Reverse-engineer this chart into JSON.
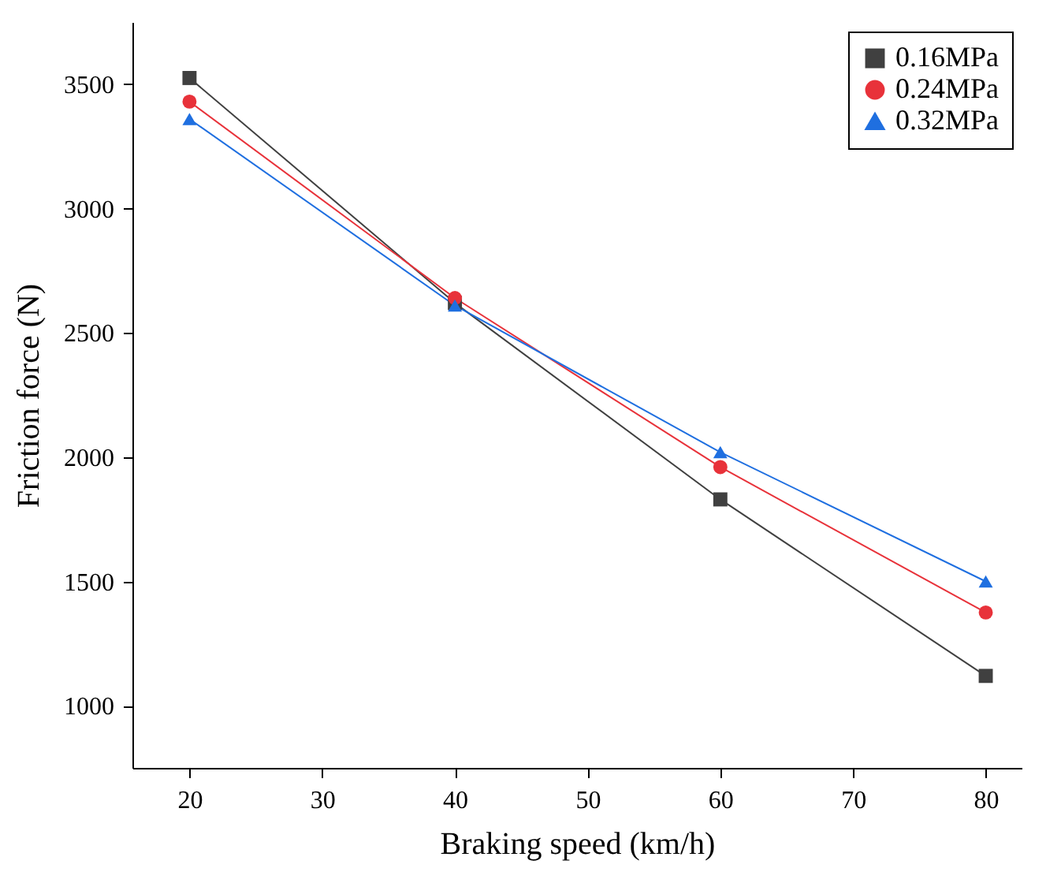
{
  "chart_data": {
    "type": "line",
    "xlabel": "Braking speed (km/h)",
    "ylabel": "Friction force (N)",
    "x": [
      20,
      40,
      60,
      80
    ],
    "series": [
      {
        "name": "0.16MPa",
        "color": "#404040",
        "marker": "square",
        "values": [
          3525,
          2620,
          1830,
          1120
        ]
      },
      {
        "name": "0.24MPa",
        "color": "#e8323a",
        "marker": "circle",
        "values": [
          3430,
          2640,
          1960,
          1375
        ]
      },
      {
        "name": "0.32MPa",
        "color": "#1f6fe0",
        "marker": "triangle",
        "values": [
          3360,
          2610,
          2020,
          1500
        ]
      }
    ],
    "xlim": [
      15.7,
      82.7
    ],
    "xticks": [
      20,
      30,
      40,
      50,
      60,
      70,
      80
    ],
    "ylim": [
      750,
      3750
    ],
    "yticks": [
      1000,
      1500,
      2000,
      2500,
      3000,
      3500
    ],
    "grid": false,
    "legend": "top right",
    "line_style": "solid"
  }
}
